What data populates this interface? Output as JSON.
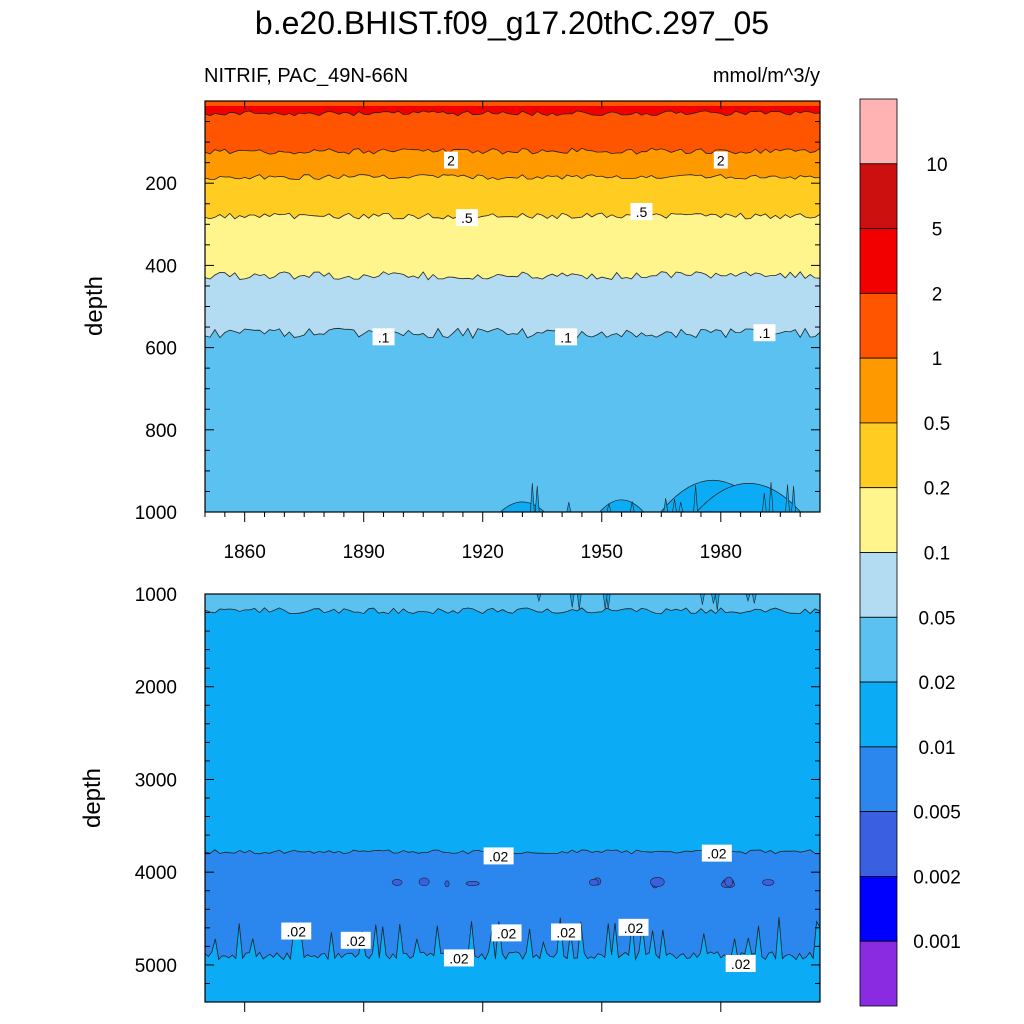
{
  "figure": {
    "title": "b.e20.BHIST.f09_g17.20thC.297_05",
    "variable_label": "NITRIF, PAC_49N-66N",
    "units_label": "mmol/m^3/y"
  },
  "chart_data": [
    {
      "type": "heatmap",
      "panel": "upper",
      "title": "b.e20.BHIST.f09_g17.20thC.297_05",
      "subtitle_left": "NITRIF, PAC_49N-66N",
      "subtitle_right": "mmol/m^3/y",
      "xlabel": "",
      "ylabel": "depth",
      "xlim": [
        1850,
        2005
      ],
      "ylim": [
        0,
        1000
      ],
      "y_inverted": true,
      "x_ticks": [
        1860,
        1890,
        1920,
        1950,
        1980
      ],
      "y_ticks": [
        200,
        400,
        600,
        800,
        1000
      ],
      "contour_boundaries_depth": [
        {
          "level": 5,
          "depth": 30
        },
        {
          "level": 2,
          "depth": 122
        },
        {
          "level": 1,
          "depth": 185
        },
        {
          "level": 0.5,
          "depth": 280
        },
        {
          "level": 0.2,
          "depth": 425
        },
        {
          "level": 0.1,
          "depth": 565
        }
      ],
      "contour_labels": [
        {
          "text": "2",
          "year": 1912,
          "depth": 145
        },
        {
          "text": "2",
          "year": 1980,
          "depth": 145
        },
        {
          "text": ".5",
          "year": 1916,
          "depth": 285
        },
        {
          "text": ".5",
          "year": 1960,
          "depth": 270
        },
        {
          "text": ".1",
          "year": 1895,
          "depth": 575
        },
        {
          "text": ".1",
          "year": 1941,
          "depth": 575
        },
        {
          "text": ".1",
          "year": 1991,
          "depth": 565
        }
      ],
      "low_value_intrusions": [
        {
          "year": 1978,
          "top_depth": 870
        },
        {
          "year": 1987,
          "top_depth": 885
        },
        {
          "year": 1955,
          "top_depth": 965
        },
        {
          "year": 1930,
          "top_depth": 975
        }
      ]
    },
    {
      "type": "heatmap",
      "panel": "lower",
      "xlabel": "",
      "ylabel": "depth",
      "xlim": [
        1850,
        2005
      ],
      "ylim": [
        1000,
        5400
      ],
      "y_inverted": true,
      "y_ticks": [
        1000,
        2000,
        3000,
        4000,
        5000
      ],
      "contour_boundaries_depth": [
        {
          "level": 0.05,
          "depth": 1180
        },
        {
          "level": 0.02,
          "depth": 3780
        },
        {
          "level": 0.02,
          "depth": 4900
        }
      ],
      "contour_labels": [
        {
          "text": ".02",
          "year": 1924,
          "depth": 3830
        },
        {
          "text": ".02",
          "year": 1979,
          "depth": 3800
        },
        {
          "text": ".02",
          "year": 1873,
          "depth": 4640
        },
        {
          "text": ".02",
          "year": 1888,
          "depth": 4740
        },
        {
          "text": ".02",
          "year": 1914,
          "depth": 4930
        },
        {
          "text": ".02",
          "year": 1926,
          "depth": 4660
        },
        {
          "text": ".02",
          "year": 1941,
          "depth": 4650
        },
        {
          "text": ".02",
          "year": 1958,
          "depth": 4600
        },
        {
          "text": ".02",
          "year": 1985,
          "depth": 4990
        }
      ]
    }
  ],
  "colorbar": {
    "levels": [
      "10",
      "5",
      "2",
      "1",
      "0.5",
      "0.2",
      "0.1",
      "0.05",
      "0.02",
      "0.01",
      "0.005",
      "0.002",
      "0.001"
    ],
    "colors": [
      "#ffb3b3",
      "#cc1010",
      "#f20000",
      "#ff5500",
      "#ff9900",
      "#ffcc22",
      "#fff58c",
      "#b3dcf2",
      "#5bc1f1",
      "#0bacf5",
      "#2b86ee",
      "#3a5fe0",
      "#0000ff",
      "#8a2be2"
    ]
  }
}
